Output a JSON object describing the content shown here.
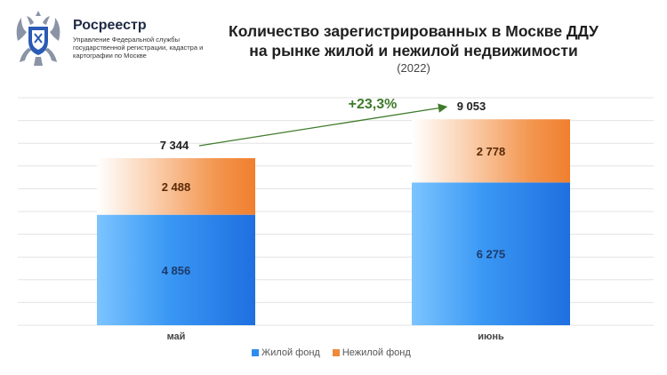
{
  "brand": {
    "name": "Росреестр",
    "subtitle": "Управление Федеральной службы государственной регистрации, кадастра и картографии по Москве"
  },
  "colors": {
    "residential": "#2f8cf0",
    "nonresidential": "#f08a3a",
    "growth": "#3f7a2a"
  },
  "chart_data": {
    "type": "bar",
    "stacked": true,
    "title_line1": "Количество зарегистрированных в Москве ДДУ",
    "title_line2": "на рынке жилой и нежилой недвижимости",
    "subtitle": "(2022)",
    "categories": [
      "май",
      "июнь"
    ],
    "series": [
      {
        "name": "Жилой фонд",
        "values": [
          4856,
          6275
        ],
        "labels": [
          "4 856",
          "6 275"
        ]
      },
      {
        "name": "Нежилой фонд",
        "values": [
          2488,
          2778
        ],
        "labels": [
          "2 488",
          "2 778"
        ]
      }
    ],
    "totals": [
      7344,
      9053
    ],
    "total_labels": [
      "7 344",
      "9 053"
    ],
    "growth_label": "+23,3%",
    "ylim": [
      0,
      10000
    ],
    "grid": true,
    "legend": "bottom"
  }
}
